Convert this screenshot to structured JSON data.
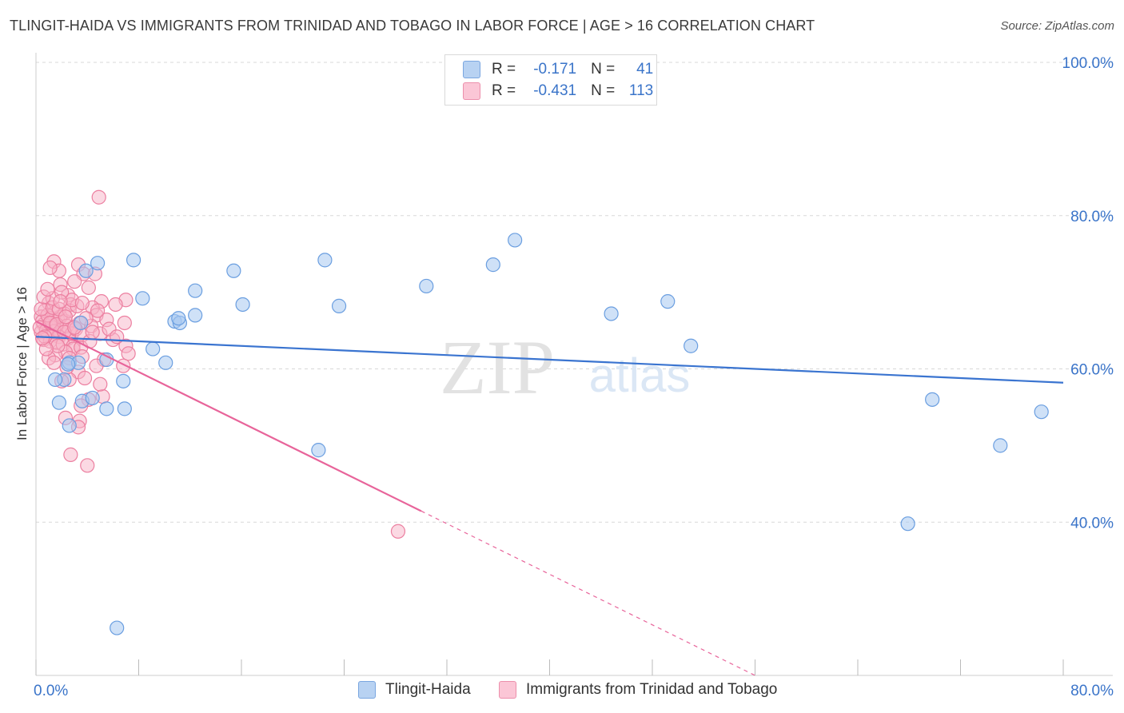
{
  "title": "TLINGIT-HAIDA VS IMMIGRANTS FROM TRINIDAD AND TOBAGO IN LABOR FORCE | AGE > 16 CORRELATION CHART",
  "source": "Source: ZipAtlas.com",
  "watermark": {
    "zip": "ZIP",
    "atlas": "atlas"
  },
  "legend": {
    "rows": [
      {
        "r_label": "R =",
        "r_value": "-0.171",
        "n_label": "N =",
        "n_value": "41"
      },
      {
        "r_label": "R =",
        "r_value": "-0.431",
        "n_label": "N =",
        "n_value": "113"
      }
    ]
  },
  "colors": {
    "blue_fill": "#a8c8f0",
    "blue_stroke": "#6a9ee0",
    "blue_line": "#3a74d0",
    "pink_fill": "#f8b4c8",
    "pink_stroke": "#ec7fa0",
    "pink_line": "#e8649a",
    "axis_label": "#3a74c9",
    "grid": "#d8d8d8"
  },
  "chart_data": {
    "type": "scatter",
    "title": "TLINGIT-HAIDA VS IMMIGRANTS FROM TRINIDAD AND TOBAGO IN LABOR FORCE | AGE > 16 CORRELATION CHART",
    "xlabel": "",
    "ylabel": "In Labor Force | Age > 16",
    "xlim": [
      0,
      80
    ],
    "ylim": [
      20,
      100
    ],
    "x_tick_labels": [
      "0.0%",
      "80.0%"
    ],
    "y_tick_labels": [
      "100.0%",
      "80.0%",
      "60.0%",
      "40.0%"
    ],
    "y_ticks": [
      100,
      80,
      60,
      40
    ],
    "grid": true,
    "legend_position": "bottom",
    "series": [
      {
        "name": "Tlingit-Haida",
        "color": "#a8c8f0",
        "r": -0.171,
        "n": 41,
        "trend": {
          "x": [
            0,
            80
          ],
          "y": [
            64.2,
            58.2
          ],
          "dashed_from": null
        },
        "points": [
          [
            4.8,
            73.8
          ],
          [
            3.9,
            72.8
          ],
          [
            7.6,
            74.2
          ],
          [
            3.5,
            66.0
          ],
          [
            2.6,
            60.8
          ],
          [
            3.6,
            55.8
          ],
          [
            5.5,
            54.8
          ],
          [
            2.2,
            58.6
          ],
          [
            1.5,
            58.6
          ],
          [
            1.8,
            55.6
          ],
          [
            2.6,
            52.6
          ],
          [
            6.9,
            54.8
          ],
          [
            6.8,
            58.4
          ],
          [
            8.3,
            69.2
          ],
          [
            9.1,
            62.6
          ],
          [
            10.1,
            60.8
          ],
          [
            10.8,
            66.2
          ],
          [
            11.2,
            66.0
          ],
          [
            11.1,
            66.6
          ],
          [
            12.4,
            67.0
          ],
          [
            12.4,
            70.2
          ],
          [
            15.4,
            72.8
          ],
          [
            16.1,
            68.4
          ],
          [
            22.5,
            74.2
          ],
          [
            23.6,
            68.2
          ],
          [
            30.4,
            70.8
          ],
          [
            35.6,
            73.6
          ],
          [
            37.3,
            76.8
          ],
          [
            22.0,
            49.4
          ],
          [
            44.8,
            67.2
          ],
          [
            49.2,
            68.8
          ],
          [
            51.0,
            63.0
          ],
          [
            69.8,
            56.0
          ],
          [
            75.1,
            50.0
          ],
          [
            78.3,
            54.4
          ],
          [
            67.9,
            39.8
          ],
          [
            6.3,
            26.2
          ],
          [
            5.5,
            61.2
          ],
          [
            3.3,
            60.8
          ],
          [
            2.5,
            60.6
          ],
          [
            4.4,
            56.2
          ]
        ]
      },
      {
        "name": "Immigrants from Trinidad and Tobago",
        "color": "#f8b4c8",
        "r": -0.431,
        "n": 113,
        "trend": {
          "x": [
            0,
            56
          ],
          "y": [
            66.2,
            20.0
          ],
          "solid_until_x": 30
        }
      }
    ]
  },
  "bottom_legend": [
    {
      "label": "Tlingit-Haida"
    },
    {
      "label": "Immigrants from Trinidad and Tobago"
    }
  ]
}
